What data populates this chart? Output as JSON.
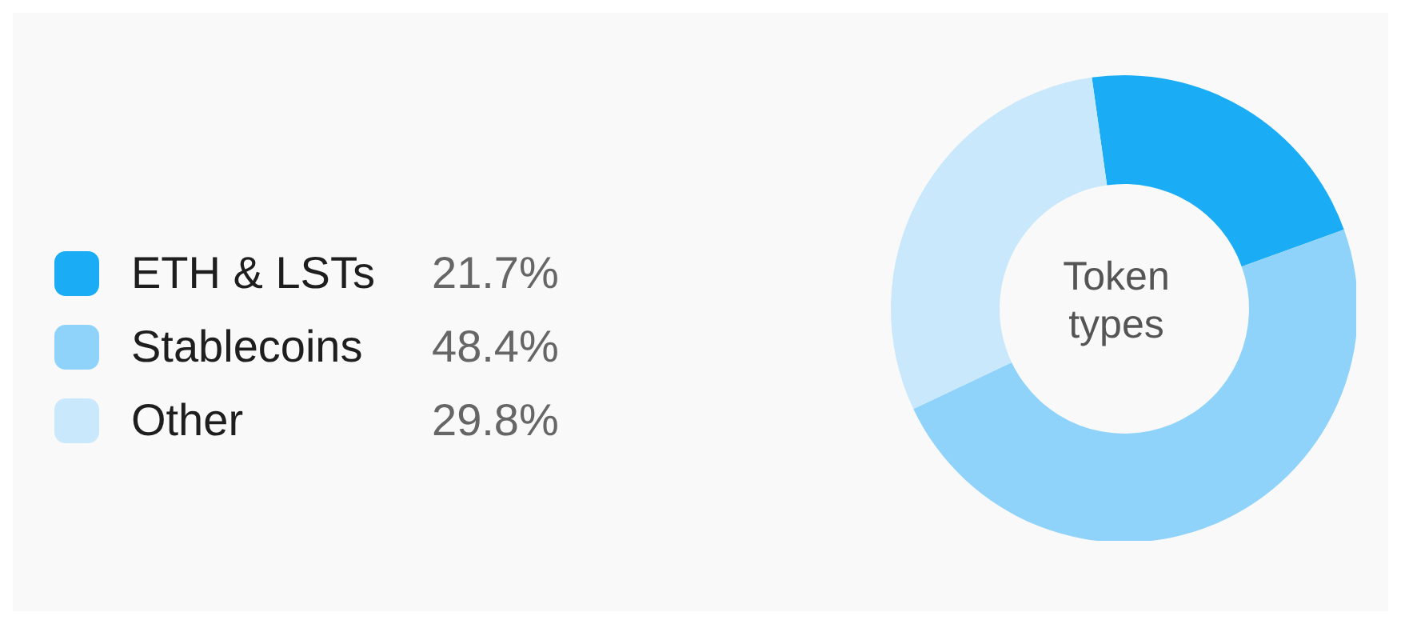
{
  "chart_data": {
    "type": "donut",
    "title": "Token types",
    "categories": [
      "ETH & LSTs",
      "Stablecoins",
      "Other"
    ],
    "values": [
      21.7,
      48.4,
      29.8
    ],
    "value_labels": [
      "21.7%",
      "48.4%",
      "29.8%"
    ],
    "colors": [
      "#1aadf5",
      "#8fd3fb",
      "#c9e8fb"
    ],
    "legend": "left"
  }
}
